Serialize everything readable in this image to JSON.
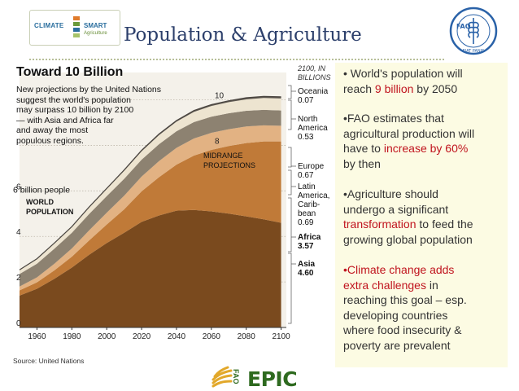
{
  "header": {
    "title": "Population & Agriculture",
    "logo": {
      "line1": "CLIMATE",
      "line2": "SMART",
      "line3": "Agriculture"
    },
    "fao_logo": {
      "text": "FAO",
      "ring_text": "FIAT PANIS"
    }
  },
  "chart_data": {
    "type": "area",
    "title": "Toward 10 Billion",
    "subtitle_lines": [
      "New projections by the United Nations",
      "suggest the world's population",
      "may surpass 10 billion by 2100",
      "— with Asia and Africa far",
      "and away the most",
      "populous regions."
    ],
    "x": [
      1950,
      1960,
      1970,
      1980,
      1990,
      2000,
      2010,
      2020,
      2030,
      2040,
      2050,
      2060,
      2070,
      2080,
      2090,
      2100
    ],
    "xticks": [
      "1960",
      "1980",
      "2000",
      "2020",
      "2040",
      "2060",
      "2080",
      "2100"
    ],
    "yticks": [
      0,
      2,
      4,
      6,
      8,
      10
    ],
    "ylim": [
      0,
      11.2
    ],
    "xlim": [
      1950,
      2103
    ],
    "series": [
      {
        "name": "Asia",
        "value_2100": "4.60",
        "color": "#7a4a1e",
        "values": [
          1.4,
          1.7,
          2.14,
          2.63,
          3.2,
          3.71,
          4.16,
          4.64,
          4.92,
          5.13,
          5.16,
          5.1,
          5.0,
          4.88,
          4.75,
          4.6
        ]
      },
      {
        "name": "Africa",
        "value_2100": "3.57",
        "color": "#c07a38",
        "values": [
          0.23,
          0.28,
          0.37,
          0.48,
          0.63,
          0.81,
          1.03,
          1.34,
          1.68,
          2.02,
          2.39,
          2.7,
          2.97,
          3.22,
          3.42,
          3.57
        ]
      },
      {
        "name": "Latin America, Carib-bean",
        "value_2100": "0.69",
        "color": "#e2b283",
        "values": [
          0.17,
          0.22,
          0.29,
          0.36,
          0.44,
          0.52,
          0.6,
          0.65,
          0.71,
          0.74,
          0.75,
          0.75,
          0.74,
          0.73,
          0.71,
          0.69
        ]
      },
      {
        "name": "Europe",
        "value_2100": "0.67",
        "color": "#8d8271",
        "values": [
          0.55,
          0.6,
          0.66,
          0.69,
          0.72,
          0.73,
          0.74,
          0.74,
          0.74,
          0.73,
          0.72,
          0.71,
          0.7,
          0.69,
          0.68,
          0.67
        ]
      },
      {
        "name": "North America",
        "value_2100": "0.53",
        "color": "#ede4d0",
        "values": [
          0.17,
          0.2,
          0.23,
          0.25,
          0.28,
          0.31,
          0.35,
          0.37,
          0.4,
          0.42,
          0.45,
          0.47,
          0.49,
          0.5,
          0.52,
          0.53
        ]
      },
      {
        "name": "Oceania",
        "value_2100": "0.07",
        "color": "#5e5850",
        "values": [
          0.01,
          0.02,
          0.02,
          0.02,
          0.03,
          0.03,
          0.04,
          0.04,
          0.05,
          0.05,
          0.06,
          0.06,
          0.06,
          0.07,
          0.07,
          0.07
        ]
      }
    ],
    "legend_header": [
      "2100, IN",
      "BILLIONS"
    ],
    "legend_labels": [
      {
        "lines": [
          "Oceania"
        ],
        "value": "0.07",
        "bold": false
      },
      {
        "lines": [
          "North",
          "America"
        ],
        "value": "0.53",
        "bold": false
      },
      {
        "lines": [
          "Europe"
        ],
        "value": "0.67",
        "bold": false
      },
      {
        "lines": [
          "Latin",
          "America,",
          "Carib-",
          "bean"
        ],
        "value": "0.69",
        "bold": false
      },
      {
        "lines": [
          "Africa"
        ],
        "value": "3.57",
        "bold": true
      },
      {
        "lines": [
          "Asia"
        ],
        "value": "4.60",
        "bold": true
      }
    ],
    "annotations": {
      "six_billion": "6 billion people",
      "world_population": [
        "WORLD",
        "POPULATION"
      ],
      "midrange": [
        "MIDRANGE",
        "PROJECTIONS"
      ]
    },
    "source": "Source: United Nations"
  },
  "bullets": [
    {
      "lines": [
        [
          {
            "t": "• World's population will"
          }
        ],
        [
          {
            "t": "reach "
          },
          {
            "t": "9 billion",
            "red": true
          },
          {
            "t": " by 2050"
          }
        ]
      ]
    },
    {
      "lines": [
        [
          {
            "t": "•FAO estimates that"
          }
        ],
        [
          {
            "t": "agricultural production will"
          }
        ],
        [
          {
            "t": "have to "
          },
          {
            "t": "increase by 60%",
            "red": true
          }
        ],
        [
          {
            "t": "by then"
          }
        ]
      ]
    },
    {
      "lines": [
        [
          {
            "t": "•Agriculture should"
          }
        ],
        [
          {
            "t": "undergo a significant"
          }
        ],
        [
          {
            "t": "transformation",
            "red": true
          },
          {
            "t": " to feed the"
          }
        ],
        [
          {
            "t": "growing global population"
          }
        ]
      ]
    },
    {
      "lines": [
        [
          {
            "t": "•Climate change adds",
            "red": true
          }
        ],
        [
          {
            "t": "extra challenges",
            "red": true
          },
          {
            "t": " in"
          }
        ],
        [
          {
            "t": "reaching this goal – esp."
          }
        ],
        [
          {
            "t": "developing countries"
          }
        ],
        [
          {
            "t": "where food insecurity &"
          }
        ],
        [
          {
            "t": "poverty are prevalent"
          }
        ]
      ]
    }
  ],
  "footer": {
    "logo_text": "EPIC",
    "logo_prefix": "FAO"
  }
}
